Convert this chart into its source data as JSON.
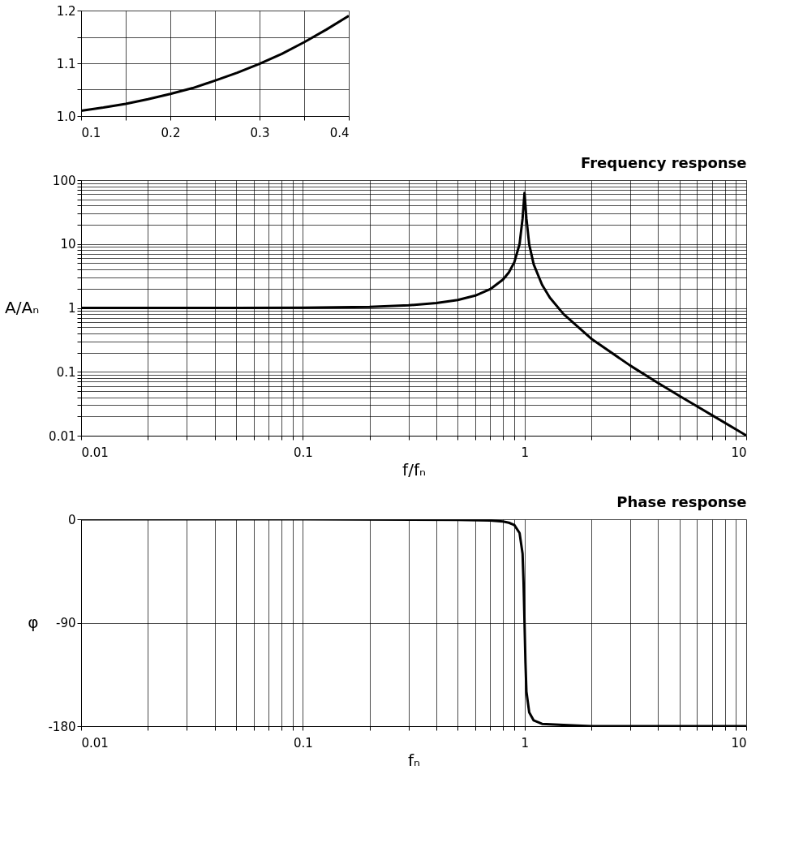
{
  "chart_data": [
    {
      "type": "line",
      "xlim": [
        0.1,
        0.4
      ],
      "ylim": [
        1.0,
        1.2
      ],
      "xticks": [
        0.1,
        {
          "value": 0.15,
          "label": null
        },
        0.2,
        {
          "value": 0.25,
          "label": null
        },
        0.3,
        {
          "value": 0.35,
          "label": null
        },
        0.4
      ],
      "yticks": [
        {
          "value": 1.0,
          "label": "1.0"
        },
        {
          "value": 1.05,
          "label": null
        },
        1.1,
        {
          "value": 1.15,
          "label": null
        },
        1.2
      ],
      "grid": true,
      "series": [
        {
          "color": "#000000",
          "x": [
            0.1,
            0.125,
            0.15,
            0.175,
            0.2,
            0.225,
            0.25,
            0.275,
            0.3,
            0.325,
            0.35,
            0.375,
            0.4
          ],
          "values": [
            1.01,
            1.016,
            1.023,
            1.032,
            1.042,
            1.053,
            1.067,
            1.082,
            1.099,
            1.118,
            1.14,
            1.164,
            1.19
          ]
        }
      ]
    },
    {
      "type": "line",
      "title": "Frequency response",
      "xlabel": "f/fₙ",
      "ylabel": "A/Aₙ",
      "log": "xy",
      "xlim": [
        0.01,
        10
      ],
      "ylim": [
        0.01,
        100
      ],
      "xticks": [
        0.01,
        {
          "value": 0.02,
          "label": null
        },
        {
          "value": 0.03,
          "label": null
        },
        {
          "value": 0.04,
          "label": null
        },
        {
          "value": 0.05,
          "label": null
        },
        {
          "value": 0.06,
          "label": null
        },
        {
          "value": 0.07,
          "label": null
        },
        {
          "value": 0.08,
          "label": null
        },
        {
          "value": 0.09,
          "label": null
        },
        0.1,
        {
          "value": 0.2,
          "label": null
        },
        {
          "value": 0.3,
          "label": null
        },
        {
          "value": 0.4,
          "label": null
        },
        {
          "value": 0.5,
          "label": null
        },
        {
          "value": 0.6,
          "label": null
        },
        {
          "value": 0.7,
          "label": null
        },
        {
          "value": 0.8,
          "label": null
        },
        {
          "value": 0.9,
          "label": null
        },
        1,
        {
          "value": 2,
          "label": null
        },
        {
          "value": 3,
          "label": null
        },
        {
          "value": 4,
          "label": null
        },
        {
          "value": 5,
          "label": null
        },
        {
          "value": 6,
          "label": null
        },
        {
          "value": 7,
          "label": null
        },
        {
          "value": 8,
          "label": null
        },
        {
          "value": 9,
          "label": null
        },
        10
      ],
      "yticks": [
        0.01,
        {
          "value": 0.02,
          "label": null
        },
        {
          "value": 0.03,
          "label": null
        },
        {
          "value": 0.04,
          "label": null
        },
        {
          "value": 0.05,
          "label": null
        },
        {
          "value": 0.06,
          "label": null
        },
        {
          "value": 0.07,
          "label": null
        },
        {
          "value": 0.08,
          "label": null
        },
        {
          "value": 0.09,
          "label": null
        },
        0.1,
        {
          "value": 0.2,
          "label": null
        },
        {
          "value": 0.3,
          "label": null
        },
        {
          "value": 0.4,
          "label": null
        },
        {
          "value": 0.5,
          "label": null
        },
        {
          "value": 0.6,
          "label": null
        },
        {
          "value": 0.7,
          "label": null
        },
        {
          "value": 0.8,
          "label": null
        },
        {
          "value": 0.9,
          "label": null
        },
        1,
        {
          "value": 2,
          "label": null
        },
        {
          "value": 3,
          "label": null
        },
        {
          "value": 4,
          "label": null
        },
        {
          "value": 5,
          "label": null
        },
        {
          "value": 6,
          "label": null
        },
        {
          "value": 7,
          "label": null
        },
        {
          "value": 8,
          "label": null
        },
        {
          "value": 9,
          "label": null
        },
        10,
        {
          "value": 20,
          "label": null
        },
        {
          "value": 30,
          "label": null
        },
        {
          "value": 40,
          "label": null
        },
        {
          "value": 50,
          "label": null
        },
        {
          "value": 60,
          "label": null
        },
        {
          "value": 70,
          "label": null
        },
        {
          "value": 80,
          "label": null
        },
        {
          "value": 90,
          "label": null
        },
        100
      ],
      "grid": true,
      "series": [
        {
          "color": "#000000",
          "x": [
            0.01,
            0.05,
            0.1,
            0.2,
            0.3,
            0.4,
            0.5,
            0.6,
            0.7,
            0.8,
            0.85,
            0.9,
            0.95,
            0.98,
            1.0,
            1.02,
            1.05,
            1.1,
            1.2,
            1.3,
            1.5,
            2,
            3,
            4,
            5,
            7,
            10
          ],
          "values": [
            1,
            1,
            1.01,
            1.04,
            1.1,
            1.19,
            1.33,
            1.56,
            1.96,
            2.78,
            3.6,
            5.2,
            10,
            25,
            63,
            25,
            9.8,
            4.8,
            2.3,
            1.45,
            0.8,
            0.33,
            0.125,
            0.067,
            0.042,
            0.021,
            0.0101
          ]
        }
      ]
    },
    {
      "type": "line",
      "title": "Phase response",
      "xlabel": "fₙ",
      "ylabel": "φ",
      "log": "x",
      "xlim": [
        0.01,
        10
      ],
      "ylim": [
        -180,
        0
      ],
      "xticks": [
        0.01,
        {
          "value": 0.02,
          "label": null
        },
        {
          "value": 0.03,
          "label": null
        },
        {
          "value": 0.04,
          "label": null
        },
        {
          "value": 0.05,
          "label": null
        },
        {
          "value": 0.06,
          "label": null
        },
        {
          "value": 0.07,
          "label": null
        },
        {
          "value": 0.08,
          "label": null
        },
        {
          "value": 0.09,
          "label": null
        },
        0.1,
        {
          "value": 0.2,
          "label": null
        },
        {
          "value": 0.3,
          "label": null
        },
        {
          "value": 0.4,
          "label": null
        },
        {
          "value": 0.5,
          "label": null
        },
        {
          "value": 0.6,
          "label": null
        },
        {
          "value": 0.7,
          "label": null
        },
        {
          "value": 0.8,
          "label": null
        },
        {
          "value": 0.9,
          "label": null
        },
        1,
        {
          "value": 2,
          "label": null
        },
        {
          "value": 3,
          "label": null
        },
        {
          "value": 4,
          "label": null
        },
        {
          "value": 5,
          "label": null
        },
        {
          "value": 6,
          "label": null
        },
        {
          "value": 7,
          "label": null
        },
        {
          "value": 8,
          "label": null
        },
        {
          "value": 9,
          "label": null
        },
        10
      ],
      "yticks": [
        -180,
        -90,
        0
      ],
      "grid": true,
      "series": [
        {
          "color": "#000000",
          "x": [
            0.01,
            0.1,
            0.5,
            0.7,
            0.8,
            0.85,
            0.9,
            0.95,
            0.98,
            0.99,
            1.0,
            1.01,
            1.02,
            1.05,
            1.1,
            1.2,
            1.5,
            2,
            10
          ],
          "values": [
            0,
            0,
            -0.5,
            -1,
            -2,
            -3,
            -5,
            -12,
            -30,
            -55,
            -90,
            -125,
            -150,
            -168,
            -175,
            -178,
            -179,
            -180,
            -180
          ]
        }
      ]
    }
  ]
}
